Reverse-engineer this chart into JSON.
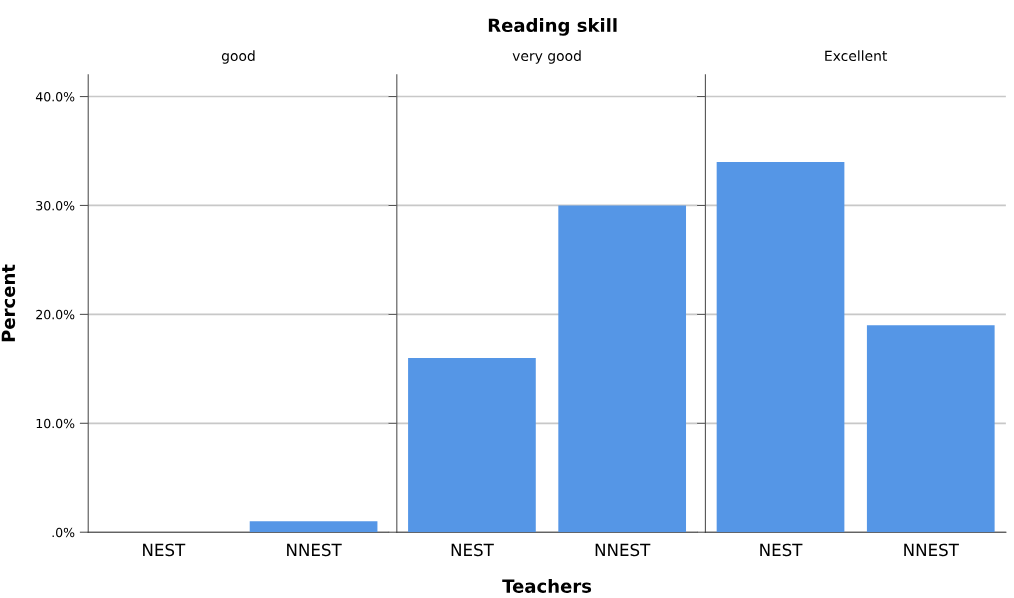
{
  "chart_data": [
    {
      "type": "bar",
      "title": "good",
      "ylabel": "Percent",
      "categories": [
        "NEST",
        "NNEST"
      ],
      "color": "#5596e6",
      "values": [
        0,
        1.0
      ],
      "ylim": [
        0,
        42
      ],
      "yticks": [
        {
          "value": 0,
          "label": ".0%"
        },
        {
          "value": 10,
          "label": "10.0%"
        },
        {
          "value": 20,
          "label": "20.0%"
        },
        {
          "value": 30,
          "label": "30.0%"
        },
        {
          "value": 40,
          "label": "40.0%"
        }
      ],
      "grid": "y"
    },
    {
      "type": "bar",
      "title": "very good",
      "xlabel": "Teachers",
      "annotations": [
        "Reading skill"
      ],
      "categories": [
        "NEST",
        "NNEST"
      ],
      "color": "#5596e6",
      "values": [
        16,
        30
      ],
      "ylim": [
        0,
        42
      ],
      "yticks": [
        {
          "value": 0,
          "label": null
        },
        {
          "value": 10,
          "label": null
        },
        {
          "value": 20,
          "label": null
        },
        {
          "value": 30,
          "label": null
        },
        {
          "value": 40,
          "label": null
        }
      ],
      "grid": "y",
      "tick_labels": "x"
    },
    {
      "type": "bar",
      "title": "Excellent",
      "categories": [
        "NEST",
        "NNEST"
      ],
      "color": "#5596e6",
      "values": [
        34,
        19
      ],
      "ylim": [
        0,
        42
      ],
      "yticks": [
        {
          "value": 0,
          "label": null
        },
        {
          "value": 10,
          "label": null
        },
        {
          "value": 20,
          "label": null
        },
        {
          "value": 30,
          "label": null
        },
        {
          "value": 40,
          "label": null
        }
      ],
      "grid": "y",
      "tick_labels": "x"
    }
  ]
}
